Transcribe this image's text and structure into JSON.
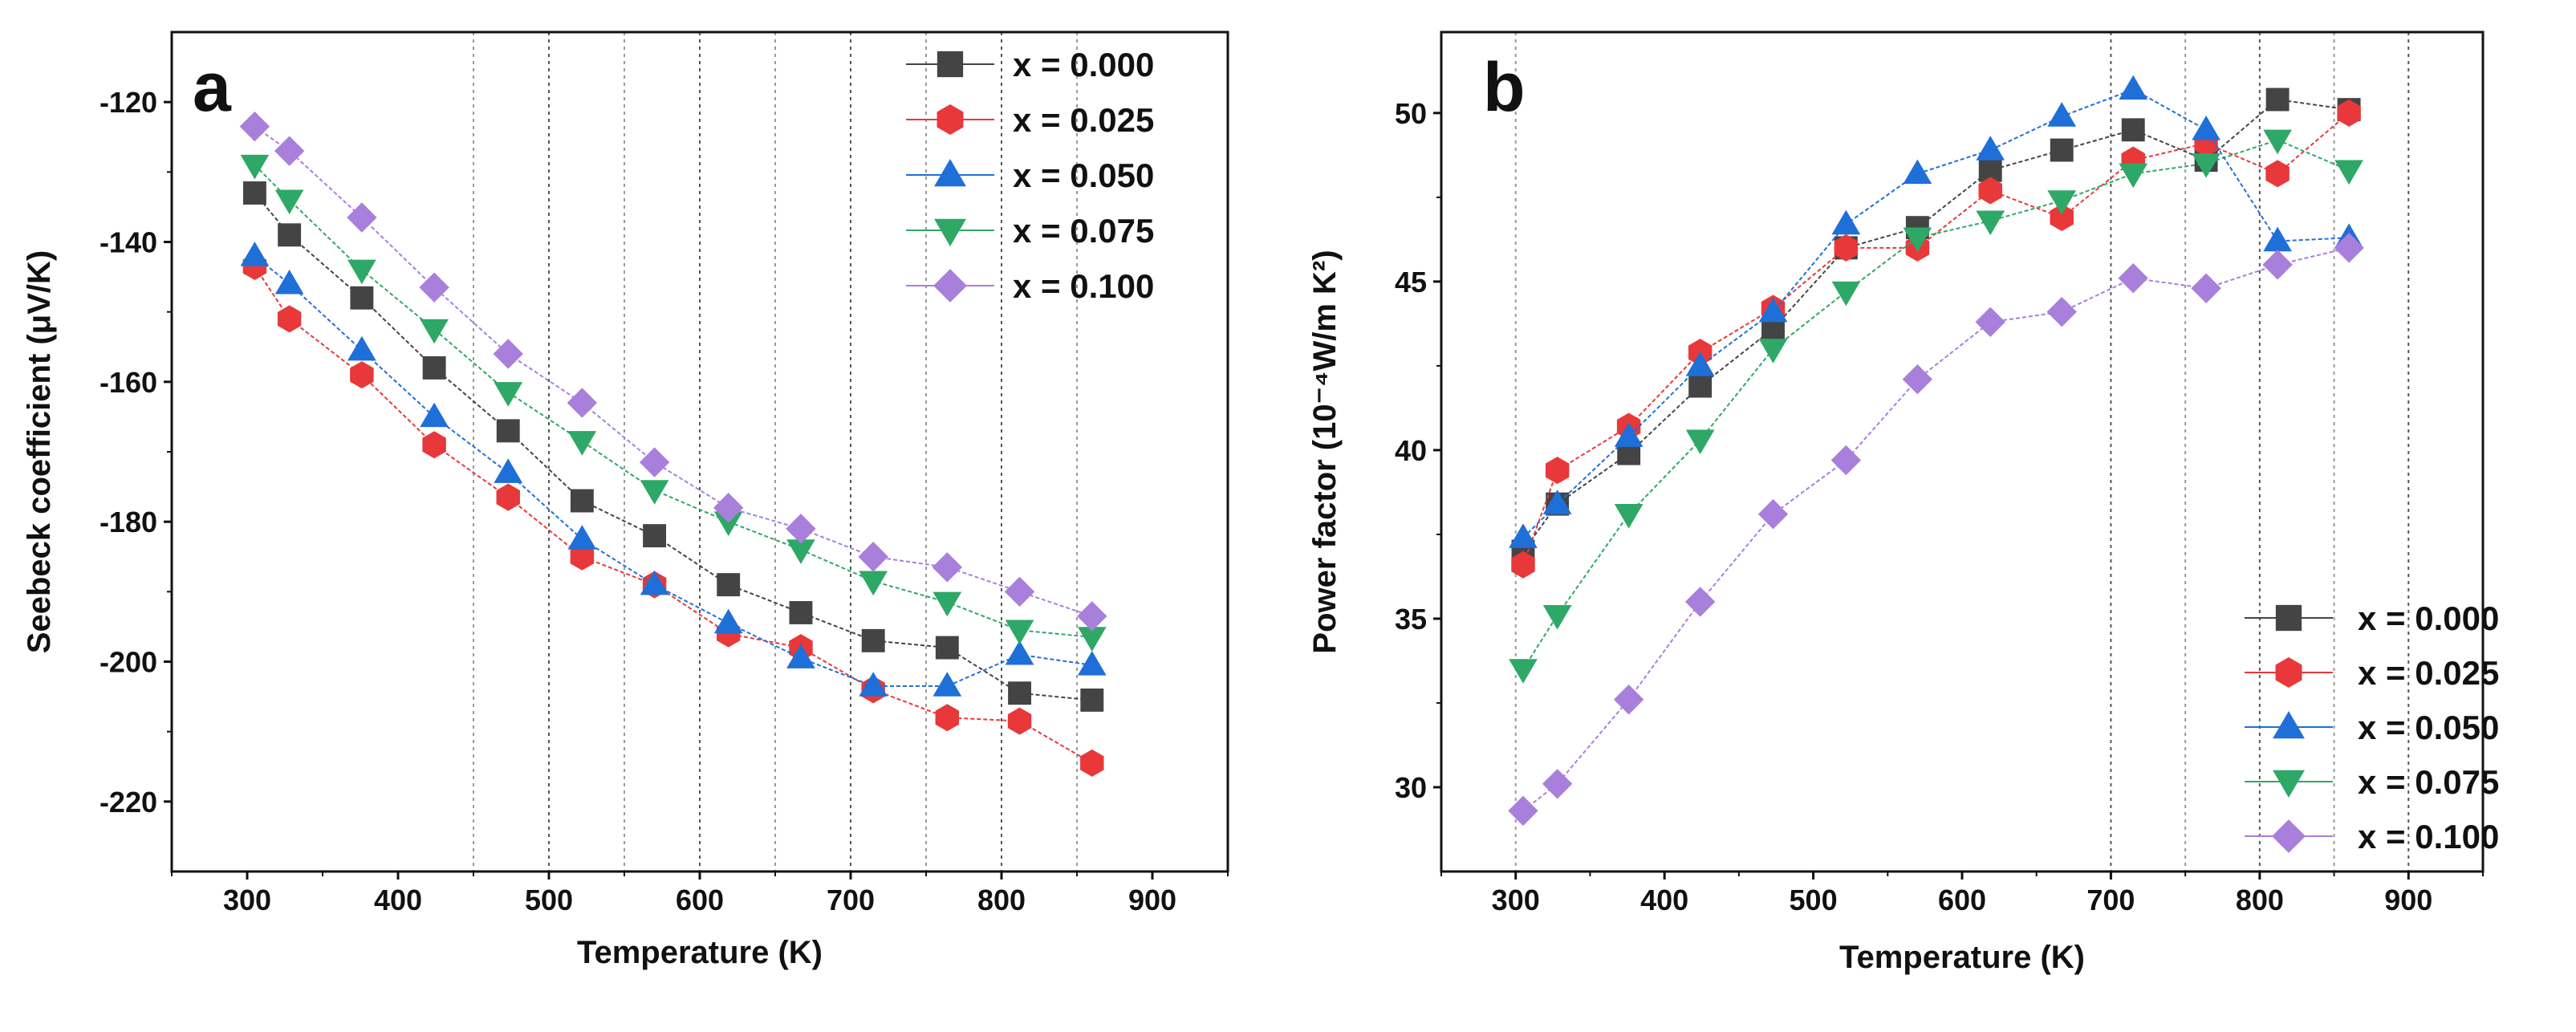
{
  "chart_data": [
    {
      "type": "line",
      "panel_label": "a",
      "xlabel": "Temperature (K)",
      "ylabel": "Seebeck coefficient (μV/K)",
      "xlim": [
        250,
        950
      ],
      "ylim": [
        -230,
        -110
      ],
      "xticks": [
        300,
        400,
        500,
        600,
        700,
        800,
        900
      ],
      "yticks": [
        -220,
        -200,
        -180,
        -160,
        -140,
        -120
      ],
      "reference_lines_x": [
        450,
        500,
        550,
        600,
        650,
        700,
        750,
        800,
        850
      ],
      "legend_position": "top-right",
      "x": [
        305,
        328,
        376,
        424,
        473,
        522,
        570,
        619,
        667,
        715,
        764,
        812,
        860
      ],
      "series": [
        {
          "name": "x = 0.000",
          "marker": "square",
          "color": "#444444",
          "values": [
            -133,
            -139,
            -148,
            -158,
            -167,
            -177,
            -182,
            -189,
            -193,
            -197,
            -198,
            -204.5,
            -205.5
          ]
        },
        {
          "name": "x = 0.025",
          "marker": "hexagon",
          "color": "#e8383a",
          "values": [
            -143.5,
            -151,
            -159,
            -169,
            -176.5,
            -185,
            -189,
            -196,
            -198,
            -204,
            -208,
            -208.5,
            -214.5
          ]
        },
        {
          "name": "x = 0.050",
          "marker": "triangle-up",
          "color": "#1f6fd8",
          "values": [
            -142,
            -146,
            -155.5,
            -165,
            -173,
            -182.5,
            -189,
            -194.5,
            -199.5,
            -203.5,
            -203.5,
            -199,
            -200.5
          ]
        },
        {
          "name": "x = 0.075",
          "marker": "triangle-down",
          "color": "#2ea866",
          "values": [
            -129,
            -134,
            -144,
            -152.5,
            -161.5,
            -168.5,
            -175.5,
            -180,
            -184,
            -188.5,
            -191.5,
            -195.5,
            -196.5
          ]
        },
        {
          "name": "x = 0.100",
          "marker": "diamond",
          "color": "#a97fdc",
          "values": [
            -123.5,
            -127,
            -136.5,
            -146.5,
            -156,
            -163,
            -171.5,
            -178,
            -181,
            -185,
            -186.5,
            -190,
            -193.5
          ]
        }
      ]
    },
    {
      "type": "line",
      "panel_label": "b",
      "xlabel": "Temperature (K)",
      "ylabel": "Power factor (10⁻⁴W/m K²)",
      "xlim": [
        250,
        950
      ],
      "ylim": [
        27.5,
        52.4
      ],
      "xticks": [
        300,
        400,
        500,
        600,
        700,
        800,
        900
      ],
      "yticks": [
        30,
        35,
        40,
        45,
        50
      ],
      "reference_lines_x": [
        300,
        700,
        750,
        800,
        850,
        900
      ],
      "legend_position": "bottom-right",
      "x": [
        305,
        328,
        376,
        424,
        473,
        522,
        570,
        619,
        667,
        715,
        764,
        812,
        860
      ],
      "series": [
        {
          "name": "x = 0.000",
          "marker": "square",
          "color": "#444444",
          "values": [
            37.0,
            38.4,
            39.9,
            41.9,
            43.6,
            46.0,
            46.6,
            48.3,
            48.9,
            49.5,
            48.6,
            50.4,
            50.1
          ]
        },
        {
          "name": "x = 0.025",
          "marker": "hexagon",
          "color": "#e8383a",
          "values": [
            36.6,
            39.4,
            40.7,
            42.9,
            44.2,
            46.0,
            46.0,
            47.7,
            46.9,
            48.6,
            49.1,
            48.2,
            50.0
          ]
        },
        {
          "name": "x = 0.050",
          "marker": "triangle-up",
          "color": "#1f6fd8",
          "values": [
            37.4,
            38.4,
            40.4,
            42.5,
            44.1,
            46.7,
            48.2,
            48.9,
            49.9,
            50.7,
            49.5,
            46.2,
            46.3
          ]
        },
        {
          "name": "x = 0.075",
          "marker": "triangle-down",
          "color": "#2ea866",
          "values": [
            33.5,
            35.1,
            38.1,
            40.3,
            43.0,
            44.7,
            46.3,
            46.8,
            47.4,
            48.2,
            48.5,
            49.2,
            48.3
          ]
        },
        {
          "name": "x = 0.100",
          "marker": "diamond",
          "color": "#a97fdc",
          "values": [
            29.3,
            30.1,
            32.6,
            35.5,
            38.1,
            39.7,
            42.1,
            43.8,
            44.1,
            45.1,
            44.8,
            45.5,
            46.0
          ]
        }
      ]
    }
  ]
}
